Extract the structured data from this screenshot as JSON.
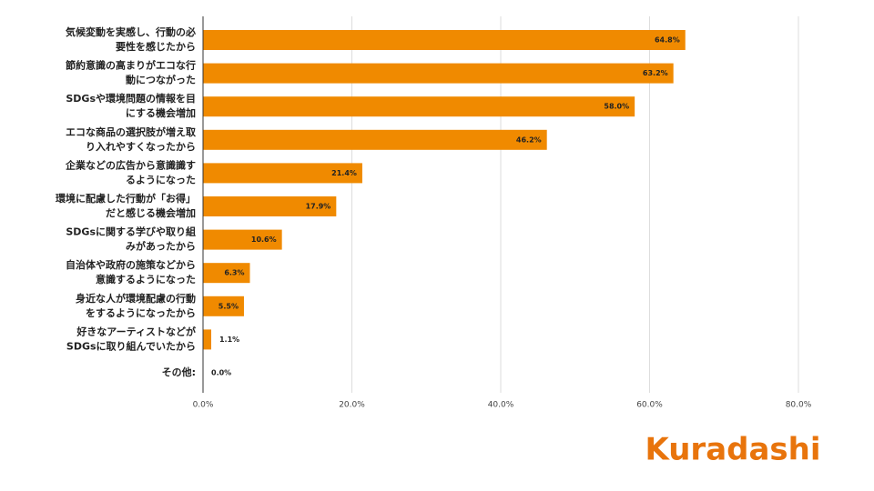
{
  "chart_data": {
    "type": "bar",
    "orientation": "horizontal",
    "categories": [
      [
        "気候変動を実感し、行動の必",
        "要性を感じたから"
      ],
      [
        "節約意識の高まりがエコな行",
        "動につながった"
      ],
      [
        "SDGsや環境問題の情報を目",
        "にする機会増加"
      ],
      [
        "エコな商品の選択肢が増え取",
        "り入れやすくなったから"
      ],
      [
        "企業などの広告から意識識す",
        "るようになった"
      ],
      [
        "環境に配慮した行動が「お得」",
        "だと感じる機会増加"
      ],
      [
        "SDGsに関する学びや取り組",
        "みがあったから"
      ],
      [
        "自治体や政府の施策などから",
        "意識するようになった"
      ],
      [
        "身近な人が環境配慮の行動",
        "をするようになったから"
      ],
      [
        "好きなアーティストなどが",
        "SDGsに取り組んでいたから"
      ],
      [
        "その他:"
      ]
    ],
    "values": [
      64.8,
      63.2,
      58.0,
      46.2,
      21.4,
      17.9,
      10.6,
      6.3,
      5.5,
      1.1,
      0.0
    ],
    "value_labels": [
      "64.8%",
      "63.2%",
      "58.0%",
      "46.2%",
      "21.4%",
      "17.9%",
      "10.6%",
      "6.3%",
      "5.5%",
      "1.1%",
      "0.0%"
    ],
    "color": "#f08a00",
    "xlim": [
      0,
      80
    ],
    "xticks": [
      {
        "value": 0,
        "label": "0.0%"
      },
      {
        "value": 20,
        "label": "20.0%"
      },
      {
        "value": 40,
        "label": "40.0%"
      },
      {
        "value": 60,
        "label": "60.0%"
      },
      {
        "value": 80,
        "label": "80.0%"
      }
    ],
    "grid": true
  },
  "logo": "Kuradashi"
}
